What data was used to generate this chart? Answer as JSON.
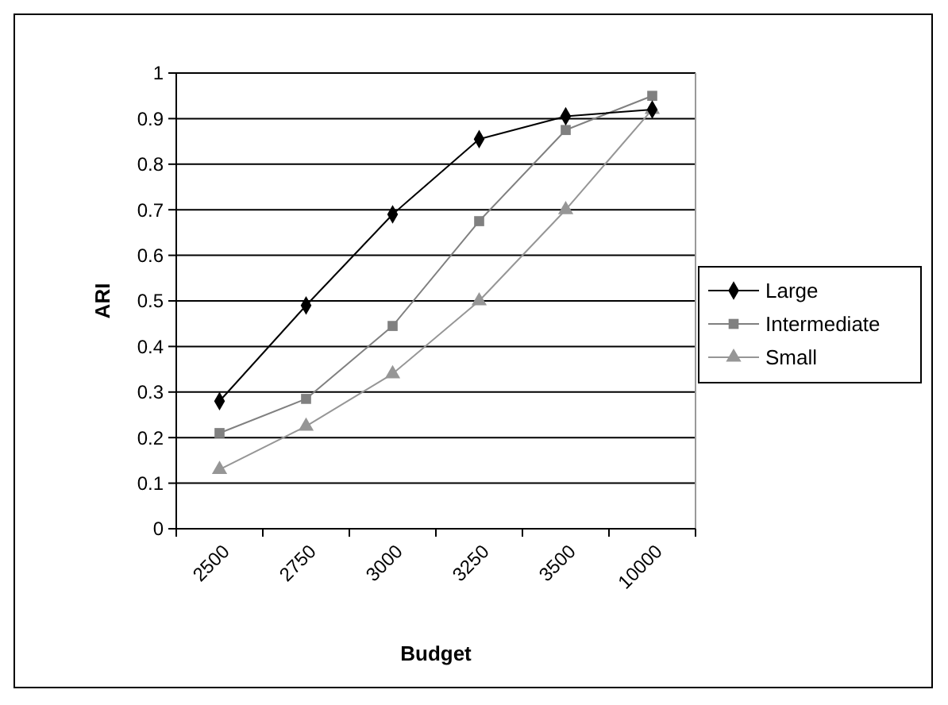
{
  "chart_data": {
    "type": "line",
    "xlabel": "Budget",
    "ylabel": "ARI",
    "categories": [
      "2500",
      "2750",
      "3000",
      "3250",
      "3500",
      "10000"
    ],
    "ylim": [
      0,
      1
    ],
    "yticks": [
      0,
      0.1,
      0.2,
      0.3,
      0.4,
      0.5,
      0.6,
      0.7,
      0.8,
      0.9,
      1
    ],
    "grid": "y",
    "legend": "right",
    "series": [
      {
        "name": "Large",
        "color": "#000000",
        "marker": "diamond",
        "values": [
          0.28,
          0.49,
          0.69,
          0.855,
          0.905,
          0.92
        ]
      },
      {
        "name": "Intermediate",
        "color": "#808080",
        "marker": "square",
        "values": [
          0.21,
          0.285,
          0.445,
          0.675,
          0.875,
          0.95
        ]
      },
      {
        "name": "Small",
        "color": "#969696",
        "marker": "triangle",
        "values": [
          0.13,
          0.225,
          0.34,
          0.5,
          0.7,
          0.92
        ]
      }
    ]
  }
}
